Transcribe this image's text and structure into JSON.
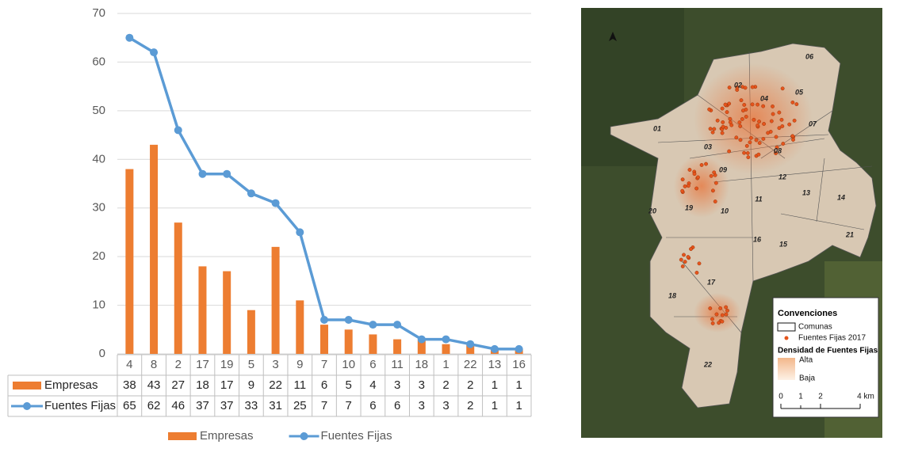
{
  "chart_data": {
    "type": "bar-line",
    "categories": [
      "4",
      "8",
      "2",
      "17",
      "19",
      "5",
      "3",
      "9",
      "7",
      "10",
      "6",
      "11",
      "18",
      "1",
      "22",
      "13",
      "16"
    ],
    "series": [
      {
        "name": "Empresas",
        "type": "bar",
        "color": "#ed7d31",
        "values": [
          38,
          43,
          27,
          18,
          17,
          9,
          22,
          11,
          6,
          5,
          4,
          3,
          3,
          2,
          2,
          1,
          1
        ]
      },
      {
        "name": "Fuentes Fijas",
        "type": "line",
        "color": "#5b9bd5",
        "values": [
          65,
          62,
          46,
          37,
          37,
          33,
          31,
          25,
          7,
          7,
          6,
          6,
          3,
          3,
          2,
          1,
          1
        ]
      }
    ],
    "ylim": [
      0,
      70
    ],
    "yticks": [
      0,
      10,
      20,
      30,
      40,
      50,
      60,
      70
    ],
    "grid": true,
    "data_table": true,
    "legend": "bottom"
  },
  "map": {
    "comunas": [
      "06",
      "02",
      "04",
      "05",
      "07",
      "01",
      "03",
      "08",
      "09",
      "12",
      "13",
      "14",
      "11",
      "20",
      "19",
      "10",
      "21",
      "16",
      "15",
      "17",
      "18",
      "22"
    ],
    "legend": {
      "title": "Convenciones",
      "comunas": "Comunas",
      "points": "Fuentes Fijas 2017",
      "density": "Densidad de Fuentes Fijas",
      "high": "Alta",
      "low": "Baja",
      "scale": [
        "0",
        "1",
        "2",
        "4 km"
      ]
    }
  }
}
